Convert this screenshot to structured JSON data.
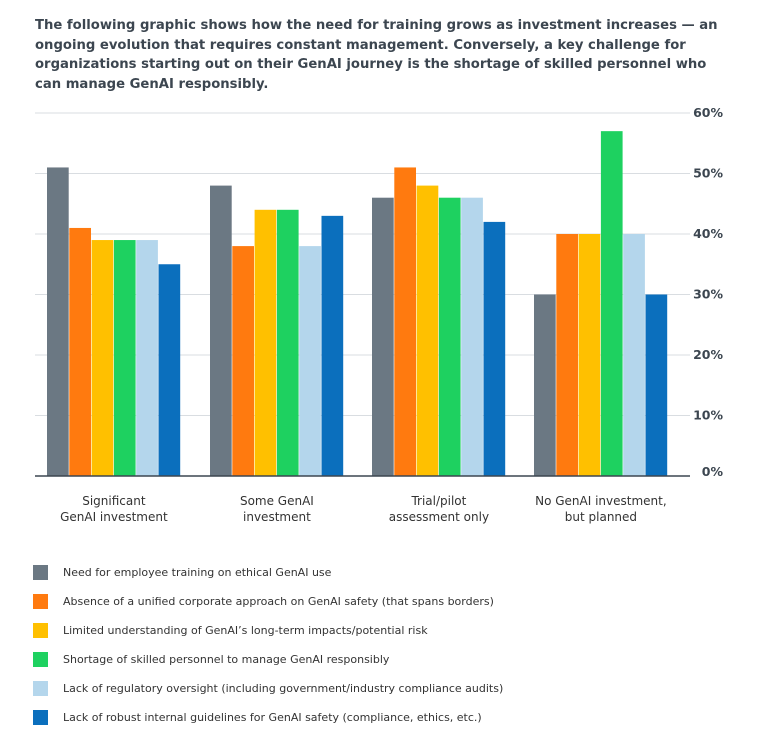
{
  "intro_text": "The following graphic shows how the need for training grows as investment increases — an ongoing evolution that requires constant management. Conversely, a key challenge for organizations starting out on their GenAI journey is the shortage of skilled personnel who can manage GenAI responsibly.",
  "chart_data": {
    "type": "bar",
    "categories": [
      [
        "Significant",
        "GenAI investment"
      ],
      [
        "Some GenAI",
        "investment"
      ],
      [
        "Trial/pilot",
        "assessment only"
      ],
      [
        "No GenAI investment,",
        "but planned"
      ]
    ],
    "y_ticks": [
      "0%",
      "10%",
      "20%",
      "30%",
      "40%",
      "50%",
      "60%"
    ],
    "ylim": [
      0,
      60
    ],
    "grid": true,
    "y_axis_position": "right",
    "legend_position": "bottom",
    "series": [
      {
        "name": "Need for employee training on ethical GenAI use",
        "color": "#6b7883",
        "values": [
          51,
          48,
          46,
          30
        ]
      },
      {
        "name": "Absence of a unified corporate approach on GenAI safety (that spans borders)",
        "color": "#ff7a0f",
        "values": [
          41,
          38,
          51,
          40
        ]
      },
      {
        "name": "Limited understanding of GenAI’s long-term impacts/potential risk",
        "color": "#ffc000",
        "values": [
          39,
          44,
          48,
          40
        ]
      },
      {
        "name": "Shortage of skilled personnel to manage GenAI responsibly",
        "color": "#1ed160",
        "values": [
          39,
          44,
          46,
          57
        ]
      },
      {
        "name": "Lack of regulatory oversight (including government/industry compliance audits)",
        "color": "#b4d6ec",
        "values": [
          39,
          38,
          46,
          40
        ]
      },
      {
        "name": "Lack of robust internal guidelines for GenAI safety (compliance, ethics, etc.)",
        "color": "#0b6fbd",
        "values": [
          35,
          43,
          42,
          30
        ]
      }
    ]
  }
}
